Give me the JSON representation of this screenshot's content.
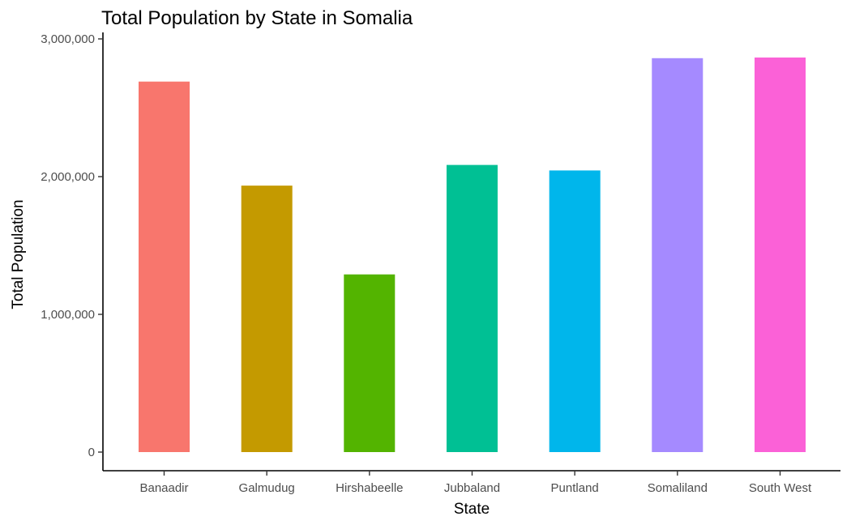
{
  "chart_data": {
    "type": "bar",
    "title": "Total Population by State in Somalia",
    "xlabel": "State",
    "ylabel": "Total Population",
    "categories": [
      "Banaadir",
      "Galmudug",
      "Hirshabeelle",
      "Jubbaland",
      "Puntland",
      "Somaliland",
      "South West"
    ],
    "values": [
      2690000,
      1935000,
      1290000,
      2085000,
      2045000,
      2860000,
      2865000
    ],
    "colors": [
      "#F8766D",
      "#C49A00",
      "#53B400",
      "#00C094",
      "#00B6EB",
      "#A58AFF",
      "#FB61D7"
    ],
    "ylim": [
      0,
      3000000
    ],
    "yticks": [
      0,
      1000000,
      2000000,
      3000000
    ],
    "ytick_labels": [
      "0",
      "1,000,000",
      "2,000,000",
      "3,000,000"
    ],
    "grid": false,
    "legend": "none"
  }
}
